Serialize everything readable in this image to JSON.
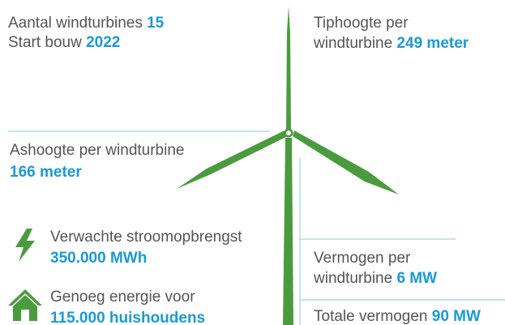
{
  "facts": {
    "turbines": {
      "label": "Aantal windturbines",
      "value": "15"
    },
    "start": {
      "label": "Start bouw",
      "value": "2022"
    },
    "tip_height": {
      "label_lines": [
        "Tiphoogte per",
        "windturbine"
      ],
      "value": "249 meter"
    },
    "hub_height": {
      "label": "Ashoogte per windturbine",
      "value": "166 meter"
    },
    "yield": {
      "label": "Verwachte stroomopbrengst",
      "value": "350.000 MWh"
    },
    "households": {
      "label": "Genoeg energie voor",
      "value": "115.000 huishoudens"
    },
    "power_per_turbine": {
      "label_lines": [
        "Vermogen per",
        "windturbine"
      ],
      "value": "6 MW"
    },
    "total_power": {
      "label": "Totale vermogen",
      "value": "90 MW"
    }
  }
}
